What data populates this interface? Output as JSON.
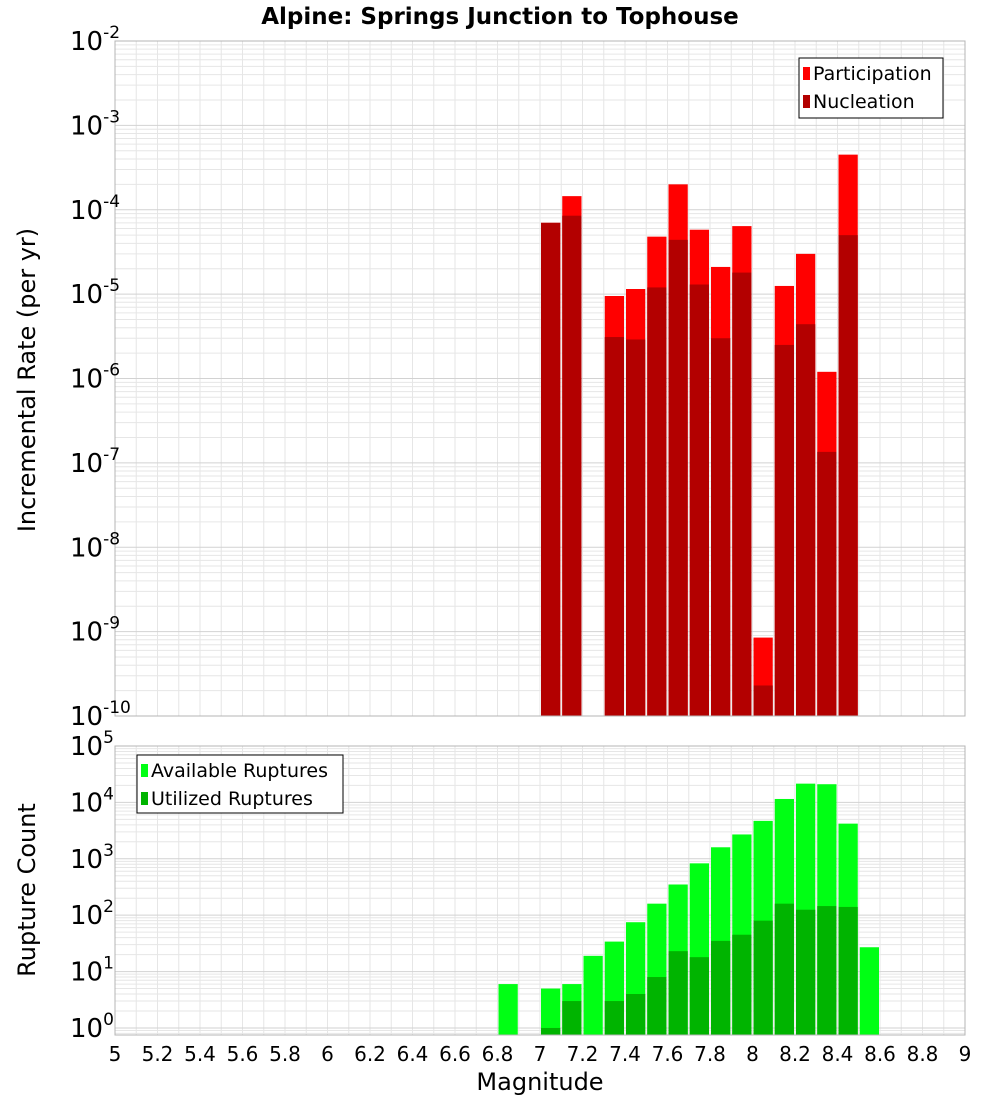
{
  "title": "Alpine: Springs Junction to Tophouse",
  "xlabel": "Magnitude",
  "x_ticks": [
    "5",
    "5.2",
    "5.4",
    "5.6",
    "5.8",
    "6",
    "6.2",
    "6.4",
    "6.6",
    "6.8",
    "7",
    "7.2",
    "7.4",
    "7.6",
    "7.8",
    "8",
    "8.2",
    "8.4",
    "8.6",
    "8.8",
    "9"
  ],
  "colors": {
    "participation": "#ff0000",
    "nucleation": "#b30000",
    "available": "#00ff14",
    "utilized": "#00b400",
    "grid": "#e6e6e6",
    "frame": "#b4b4b4"
  },
  "chart_data": [
    {
      "type": "bar",
      "title": "Alpine: Springs Junction to Tophouse",
      "xlabel": "Magnitude",
      "ylabel": "Incremental Rate (per yr)",
      "yscale": "log",
      "ylim": [
        1e-10,
        0.01
      ],
      "xlim": [
        5,
        9
      ],
      "bin_width": 0.1,
      "grid": true,
      "legend_position": "top-right",
      "y_ticks": [
        {
          "base": "10",
          "exp": "-10"
        },
        {
          "base": "10",
          "exp": "-9"
        },
        {
          "base": "10",
          "exp": "-8"
        },
        {
          "base": "10",
          "exp": "-7"
        },
        {
          "base": "10",
          "exp": "-6"
        },
        {
          "base": "10",
          "exp": "-5"
        },
        {
          "base": "10",
          "exp": "-4"
        },
        {
          "base": "10",
          "exp": "-3"
        },
        {
          "base": "10",
          "exp": "-2"
        }
      ],
      "series": [
        {
          "name": "Participation",
          "color": "#ff0000",
          "x": [
            7.05,
            7.15,
            7.35,
            7.45,
            7.55,
            7.65,
            7.75,
            7.85,
            7.95,
            8.05,
            8.15,
            8.25,
            8.35,
            8.45
          ],
          "values": [
            7e-05,
            0.000145,
            9.5e-06,
            1.15e-05,
            4.8e-05,
            0.0002,
            5.8e-05,
            2.1e-05,
            6.4e-05,
            8.5e-10,
            1.25e-05,
            3e-05,
            1.2e-06,
            0.00045
          ]
        },
        {
          "name": "Nucleation",
          "color": "#b30000",
          "x": [
            7.05,
            7.15,
            7.35,
            7.45,
            7.55,
            7.65,
            7.75,
            7.85,
            7.95,
            8.05,
            8.15,
            8.25,
            8.35,
            8.45
          ],
          "values": [
            7e-05,
            8.5e-05,
            3.1e-06,
            2.9e-06,
            1.2e-05,
            4.4e-05,
            1.3e-05,
            3e-06,
            1.8e-05,
            2.3e-10,
            2.5e-06,
            4.4e-06,
            1.35e-07,
            5e-05
          ]
        }
      ]
    },
    {
      "type": "bar",
      "title": "",
      "xlabel": "Magnitude",
      "ylabel": "Rupture Count",
      "yscale": "log",
      "ylim": [
        0.75,
        100000.0
      ],
      "xlim": [
        5,
        9
      ],
      "bin_width": 0.1,
      "grid": true,
      "legend_position": "top-left",
      "y_ticks": [
        {
          "base": "10",
          "exp": "0"
        },
        {
          "base": "10",
          "exp": "1"
        },
        {
          "base": "10",
          "exp": "2"
        },
        {
          "base": "10",
          "exp": "3"
        },
        {
          "base": "10",
          "exp": "4"
        },
        {
          "base": "10",
          "exp": "5"
        }
      ],
      "series": [
        {
          "name": "Available Ruptures",
          "color": "#00ff14",
          "x": [
            6.85,
            7.05,
            7.15,
            7.25,
            7.35,
            7.45,
            7.55,
            7.65,
            7.75,
            7.85,
            7.95,
            8.05,
            8.15,
            8.25,
            8.35,
            8.45,
            8.55
          ],
          "values": [
            6,
            5,
            6,
            19,
            34,
            75,
            160,
            350,
            830,
            1600,
            2700,
            4700,
            11500,
            21500,
            21000,
            4200,
            27
          ]
        },
        {
          "name": "Utilized Ruptures",
          "color": "#00b400",
          "x": [
            7.05,
            7.15,
            7.35,
            7.45,
            7.55,
            7.65,
            7.75,
            7.85,
            7.95,
            8.05,
            8.15,
            8.25,
            8.35,
            8.45
          ],
          "values": [
            1,
            3,
            3,
            4,
            8,
            23,
            18,
            35,
            45,
            80,
            160,
            125,
            145,
            140
          ]
        }
      ]
    }
  ]
}
